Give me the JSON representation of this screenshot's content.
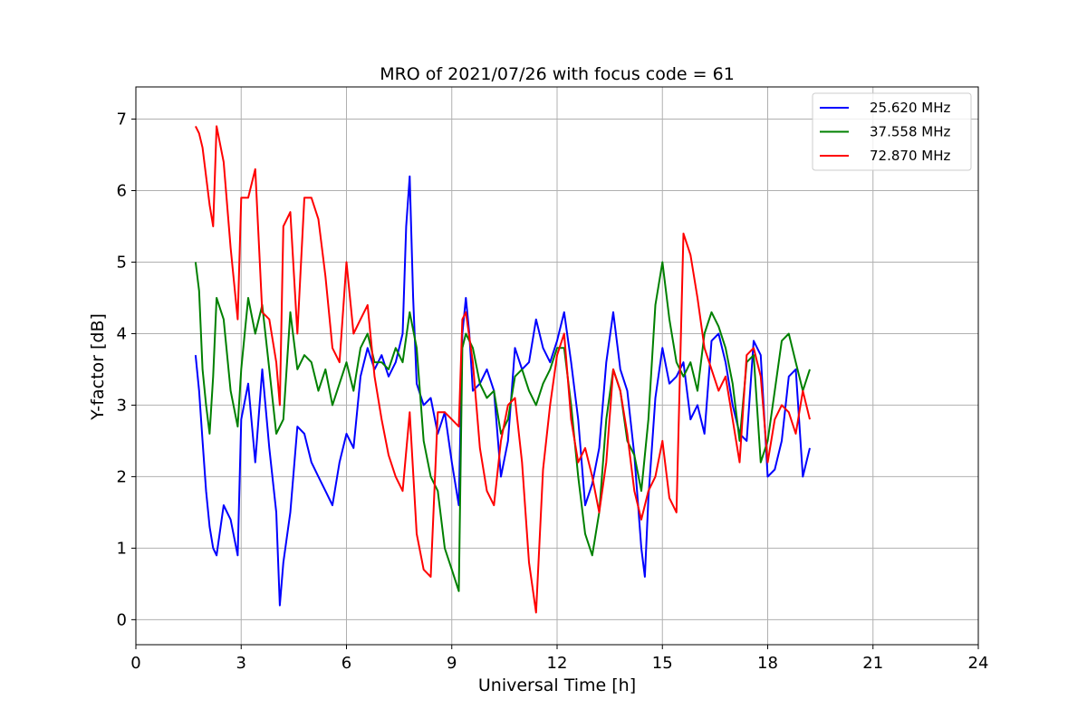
{
  "chart_data": {
    "type": "line",
    "title": "MRO of 2021/07/26 with focus code = 61",
    "xlabel": "Universal Time [h]",
    "ylabel": "Y-factor [dB]",
    "xlim": [
      0,
      24
    ],
    "ylim": [
      -0.35,
      7.45
    ],
    "xticks": [
      0,
      3,
      6,
      9,
      12,
      15,
      18,
      21,
      24
    ],
    "yticks": [
      0,
      1,
      2,
      3,
      4,
      5,
      6,
      7
    ],
    "grid": true,
    "legend_position": "top-right",
    "series": [
      {
        "name": "25.620 MHz",
        "color": "#0000ff",
        "x": [
          1.7,
          1.8,
          1.9,
          2.0,
          2.1,
          2.2,
          2.3,
          2.5,
          2.7,
          2.9,
          3.0,
          3.2,
          3.4,
          3.6,
          3.8,
          4.0,
          4.1,
          4.2,
          4.4,
          4.6,
          4.8,
          5.0,
          5.2,
          5.4,
          5.6,
          5.8,
          6.0,
          6.2,
          6.4,
          6.6,
          6.8,
          7.0,
          7.2,
          7.4,
          7.6,
          7.7,
          7.8,
          7.9,
          8.0,
          8.2,
          8.4,
          8.6,
          8.8,
          9.0,
          9.2,
          9.3,
          9.4,
          9.5,
          9.6,
          9.8,
          10.0,
          10.2,
          10.4,
          10.6,
          10.8,
          11.0,
          11.2,
          11.4,
          11.6,
          11.8,
          12.0,
          12.2,
          12.4,
          12.6,
          12.8,
          13.0,
          13.2,
          13.4,
          13.6,
          13.8,
          14.0,
          14.2,
          14.4,
          14.5,
          14.6,
          14.8,
          15.0,
          15.2,
          15.4,
          15.6,
          15.8,
          16.0,
          16.2,
          16.4,
          16.6,
          16.8,
          17.0,
          17.2,
          17.4,
          17.6,
          17.8,
          18.0,
          18.2,
          18.4,
          18.6,
          18.8,
          19.0,
          19.2
        ],
        "y": [
          3.7,
          3.2,
          2.5,
          1.8,
          1.3,
          1.0,
          0.9,
          1.6,
          1.4,
          0.9,
          2.8,
          3.3,
          2.2,
          3.5,
          2.4,
          1.5,
          0.2,
          0.8,
          1.5,
          2.7,
          2.6,
          2.2,
          2.0,
          1.8,
          1.6,
          2.2,
          2.6,
          2.4,
          3.4,
          3.8,
          3.5,
          3.7,
          3.4,
          3.6,
          4.0,
          5.5,
          6.2,
          4.5,
          3.3,
          3.0,
          3.1,
          2.6,
          2.9,
          2.2,
          1.6,
          4.0,
          4.5,
          4.0,
          3.2,
          3.3,
          3.5,
          3.2,
          2.0,
          2.5,
          3.8,
          3.5,
          3.6,
          4.2,
          3.8,
          3.6,
          3.9,
          4.3,
          3.6,
          2.8,
          1.6,
          1.9,
          2.4,
          3.6,
          4.3,
          3.5,
          3.2,
          2.3,
          1.0,
          0.6,
          1.7,
          3.1,
          3.8,
          3.3,
          3.4,
          3.6,
          2.8,
          3.0,
          2.6,
          3.9,
          4.0,
          3.6,
          3.0,
          2.6,
          2.5,
          3.9,
          3.7,
          2.0,
          2.1,
          2.5,
          3.4,
          3.5,
          2.0,
          2.4
        ]
      },
      {
        "name": "37.558 MHz",
        "color": "#008000",
        "x": [
          1.7,
          1.8,
          1.9,
          2.0,
          2.1,
          2.2,
          2.3,
          2.5,
          2.7,
          2.9,
          3.0,
          3.2,
          3.4,
          3.6,
          3.8,
          4.0,
          4.2,
          4.4,
          4.6,
          4.8,
          5.0,
          5.2,
          5.4,
          5.6,
          5.8,
          6.0,
          6.2,
          6.4,
          6.6,
          6.8,
          7.0,
          7.2,
          7.4,
          7.6,
          7.8,
          8.0,
          8.2,
          8.4,
          8.6,
          8.8,
          9.0,
          9.2,
          9.3,
          9.4,
          9.6,
          9.8,
          10.0,
          10.2,
          10.4,
          10.6,
          10.8,
          11.0,
          11.2,
          11.4,
          11.6,
          11.8,
          12.0,
          12.2,
          12.4,
          12.6,
          12.8,
          13.0,
          13.2,
          13.4,
          13.6,
          13.8,
          14.0,
          14.2,
          14.4,
          14.6,
          14.8,
          15.0,
          15.2,
          15.4,
          15.6,
          15.8,
          16.0,
          16.2,
          16.4,
          16.6,
          16.8,
          17.0,
          17.2,
          17.4,
          17.6,
          17.8,
          18.0,
          18.2,
          18.4,
          18.6,
          18.8,
          19.0,
          19.2
        ],
        "y": [
          5.0,
          4.6,
          3.5,
          3.0,
          2.6,
          3.4,
          4.5,
          4.2,
          3.2,
          2.7,
          3.5,
          4.5,
          4.0,
          4.4,
          3.5,
          2.6,
          2.8,
          4.3,
          3.5,
          3.7,
          3.6,
          3.2,
          3.5,
          3.0,
          3.3,
          3.6,
          3.2,
          3.8,
          4.0,
          3.6,
          3.6,
          3.5,
          3.8,
          3.6,
          4.3,
          3.8,
          2.5,
          2.0,
          1.8,
          1.0,
          0.7,
          0.4,
          3.8,
          4.0,
          3.8,
          3.3,
          3.1,
          3.2,
          2.6,
          2.8,
          3.4,
          3.5,
          3.2,
          3.0,
          3.3,
          3.5,
          3.8,
          3.8,
          3.0,
          2.0,
          1.2,
          0.9,
          1.5,
          2.8,
          3.5,
          3.2,
          2.5,
          2.3,
          1.8,
          2.8,
          4.4,
          5.0,
          4.2,
          3.6,
          3.4,
          3.6,
          3.2,
          4.0,
          4.3,
          4.1,
          3.8,
          3.3,
          2.5,
          3.6,
          3.7,
          2.2,
          2.5,
          3.2,
          3.9,
          4.0,
          3.6,
          3.2,
          3.5
        ]
      },
      {
        "name": "72.870 MHz",
        "color": "#ff0000",
        "x": [
          1.7,
          1.8,
          1.9,
          2.0,
          2.1,
          2.2,
          2.3,
          2.5,
          2.7,
          2.8,
          2.9,
          3.0,
          3.2,
          3.4,
          3.6,
          3.8,
          4.0,
          4.1,
          4.2,
          4.4,
          4.6,
          4.8,
          5.0,
          5.2,
          5.4,
          5.6,
          5.8,
          6.0,
          6.2,
          6.4,
          6.6,
          6.8,
          7.0,
          7.2,
          7.4,
          7.6,
          7.8,
          8.0,
          8.2,
          8.4,
          8.6,
          8.8,
          9.0,
          9.2,
          9.3,
          9.4,
          9.6,
          9.8,
          10.0,
          10.2,
          10.4,
          10.6,
          10.8,
          11.0,
          11.2,
          11.4,
          11.6,
          11.8,
          12.0,
          12.2,
          12.4,
          12.6,
          12.8,
          13.0,
          13.2,
          13.4,
          13.6,
          13.8,
          14.0,
          14.2,
          14.4,
          14.6,
          14.8,
          15.0,
          15.2,
          15.4,
          15.6,
          15.8,
          16.0,
          16.2,
          16.4,
          16.6,
          16.8,
          17.0,
          17.2,
          17.4,
          17.6,
          17.8,
          18.0,
          18.2,
          18.4,
          18.6,
          18.8,
          19.0,
          19.2
        ],
        "y": [
          6.9,
          6.8,
          6.6,
          6.2,
          5.8,
          5.5,
          6.9,
          6.4,
          5.2,
          4.7,
          4.2,
          5.9,
          5.9,
          6.3,
          4.3,
          4.2,
          3.6,
          3.0,
          5.5,
          5.7,
          4.0,
          5.9,
          5.9,
          5.6,
          4.8,
          3.8,
          3.6,
          5.0,
          4.0,
          4.2,
          4.4,
          3.4,
          2.8,
          2.3,
          2.0,
          1.8,
          2.9,
          1.2,
          0.7,
          0.6,
          2.9,
          2.9,
          2.8,
          2.7,
          4.2,
          4.3,
          3.6,
          2.4,
          1.8,
          1.6,
          2.5,
          3.0,
          3.1,
          2.2,
          0.8,
          0.1,
          2.1,
          3.0,
          3.7,
          4.0,
          2.8,
          2.2,
          2.4,
          2.0,
          1.5,
          2.2,
          3.5,
          3.2,
          2.6,
          1.8,
          1.4,
          1.8,
          2.0,
          2.5,
          1.7,
          1.5,
          5.4,
          5.1,
          4.5,
          3.8,
          3.5,
          3.2,
          3.4,
          2.8,
          2.2,
          3.7,
          3.8,
          3.4,
          2.2,
          2.8,
          3.0,
          2.9,
          2.6,
          3.2,
          2.8
        ]
      }
    ]
  }
}
